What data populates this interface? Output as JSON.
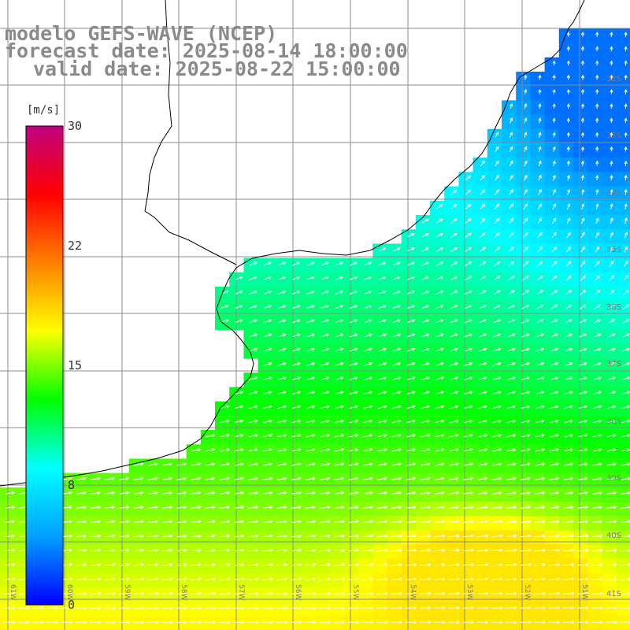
{
  "title": {
    "line1": "modelo GEFS-WAVE (NCEP)",
    "line2": "forecast date: 2025-08-14 18:00:00",
    "line3": "valid date: 2025-08-22 15:00:00"
  },
  "colorbar": {
    "units": "[m/s]",
    "ticks": [
      {
        "label": "30",
        "value": 30
      },
      {
        "label": "22",
        "value": 22
      },
      {
        "label": "15",
        "value": 15
      },
      {
        "label": "8",
        "value": 8
      },
      {
        "label": "0",
        "value": 0
      }
    ],
    "range": [
      0,
      30
    ],
    "colors": [
      "#0000ff",
      "#00a0ff",
      "#00ffff",
      "#00ff00",
      "#ffff00",
      "#ff8000",
      "#ff0000",
      "#c00080"
    ]
  },
  "map": {
    "variable": "wind speed and direction",
    "lon_range": [
      -61,
      -50
    ],
    "lat_range": [
      -41.2,
      -31.3
    ],
    "lat_labels": [
      "32S",
      "33S",
      "34S",
      "35S",
      "36S",
      "37S",
      "38S",
      "39S",
      "40S",
      "41S"
    ],
    "lon_labels": [
      "61W",
      "60W",
      "59W",
      "58W",
      "57W",
      "56W",
      "55W",
      "54W",
      "53W",
      "52W",
      "51W"
    ],
    "grid": true,
    "land_color": "#ffffff",
    "arrow_color": "#ffffff",
    "ocean_speed_range": [
      3,
      18
    ]
  }
}
